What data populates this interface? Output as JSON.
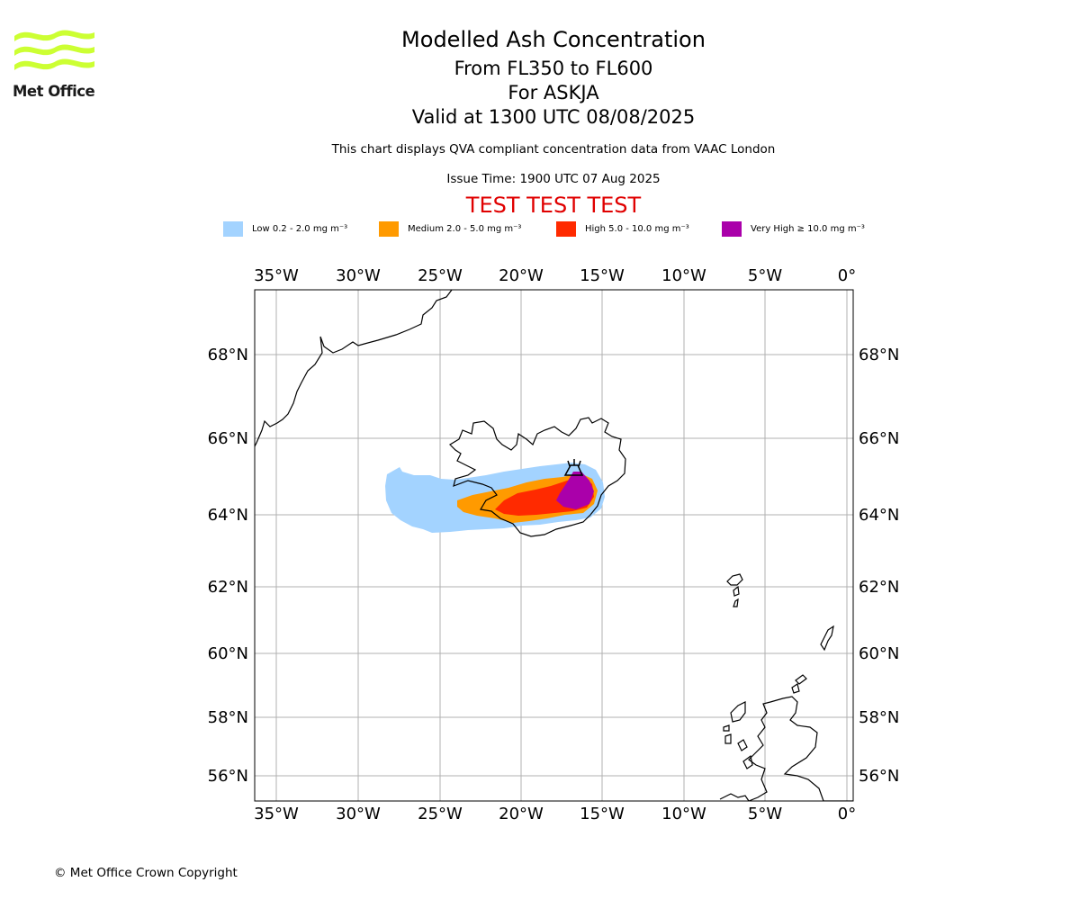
{
  "header": {
    "title": "Modelled Ash Concentration",
    "flight_levels": "From FL350 to FL600",
    "volcano": "For ASKJA",
    "valid_time": "Valid at 1300 UTC 08/08/2025",
    "description": "This chart displays QVA compliant concentration data from VAAC London",
    "issue_time": "Issue Time: 1900 UTC 07 Aug 2025",
    "test_banner": "TEST TEST TEST"
  },
  "logo": {
    "text": "Met Office"
  },
  "legend": [
    {
      "label": "Low 0.2 - 2.0 mg m⁻³",
      "color": "#a3d3ff"
    },
    {
      "label": "Medium 2.0 - 5.0 mg m⁻³",
      "color": "#ff9a00"
    },
    {
      "label": "High 5.0 - 10.0 mg m⁻³",
      "color": "#ff2a00"
    },
    {
      "label": "Very High ≥ 10.0 mg m⁻³",
      "color": "#aa00aa"
    }
  ],
  "map": {
    "lon_ticks": [
      "35°W",
      "30°W",
      "25°W",
      "20°W",
      "15°W",
      "10°W",
      "5°W",
      "0°"
    ],
    "lat_ticks": [
      "68°N",
      "66°N",
      "64°N",
      "62°N",
      "60°N",
      "58°N",
      "56°N"
    ],
    "volcano_icon": "volcano-icon",
    "grid": true
  },
  "footer": {
    "copyright": "© Met Office Crown Copyright"
  }
}
